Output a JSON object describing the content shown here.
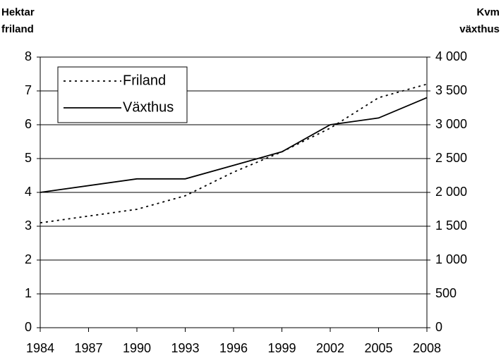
{
  "chart_data": {
    "type": "line",
    "y_label": "Hektar friland",
    "y2_label": "Kvm växthus",
    "x": [
      1984,
      1990,
      1993,
      1996,
      1999,
      2002,
      2005,
      2008
    ],
    "series": [
      {
        "name": "Friland",
        "color": "#000000",
        "dash": "dotted",
        "values": [
          3.1,
          3.5,
          3.9,
          4.6,
          5.2,
          5.9,
          6.8,
          7.2
        ]
      },
      {
        "name": "Växthus",
        "color": "#000000",
        "dash": "solid",
        "axis": "y2",
        "values": [
          2000,
          2200,
          2200,
          2400,
          2600,
          3000,
          3100,
          3400
        ]
      }
    ],
    "xlim": [
      1984,
      2008
    ],
    "xticks": [
      1984,
      1987,
      1990,
      1993,
      1996,
      1999,
      2002,
      2005,
      2008
    ],
    "ylim": [
      0,
      8
    ],
    "yticks": [
      0,
      1,
      2,
      3,
      4,
      5,
      6,
      7,
      8
    ],
    "y2lim": [
      0,
      4000
    ],
    "y2ticks": [
      0,
      500,
      {
        "value": 1000,
        "label": "1 000"
      },
      {
        "value": 1500,
        "label": "1 500"
      },
      {
        "value": 2000,
        "label": "2 000"
      },
      {
        "value": 2500,
        "label": "2 500"
      },
      {
        "value": 3000,
        "label": "3 000"
      },
      {
        "value": 3500,
        "label": "3 500"
      },
      {
        "value": 4000,
        "label": "4 000"
      }
    ],
    "grid": true,
    "legend": "upper left"
  }
}
